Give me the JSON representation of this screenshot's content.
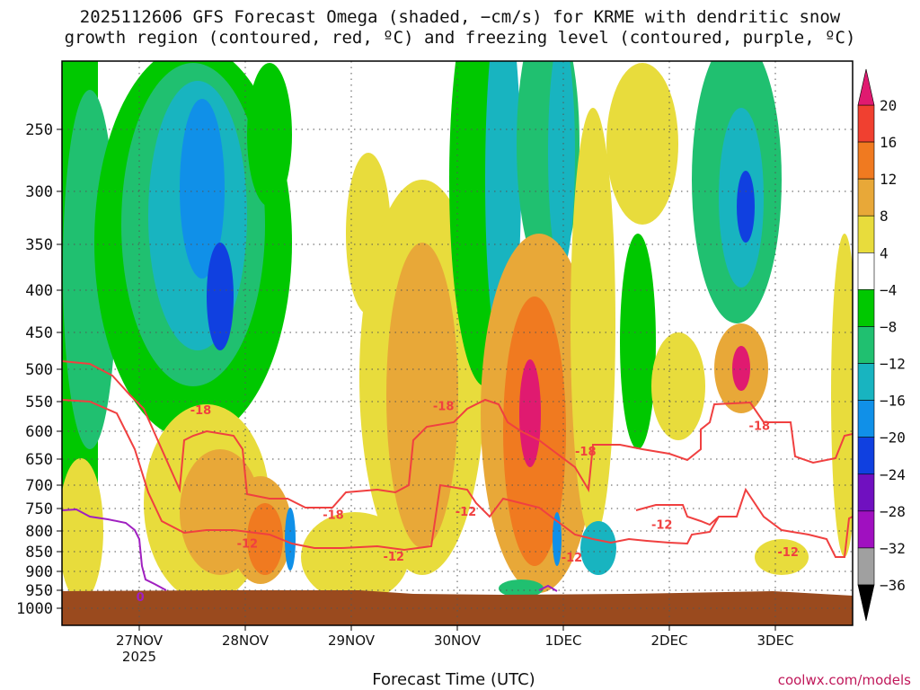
{
  "title": {
    "line1": "2025112606 GFS Forecast Omega (shaded, −cm/s) for KRME with dendritic snow",
    "line2": "growth region (contoured, red, ºC) and freezing level (contoured, purple, ºC)"
  },
  "watermark": "coolwx.com/models",
  "chart_data": {
    "type": "heatmap",
    "xlabel": "Forecast Time (UTC)",
    "ylabel": "",
    "x_start": "2025-11-26 06Z",
    "x_end": "2025-12-03 18Z",
    "x_ticks": [
      "27NOV",
      "28NOV",
      "29NOV",
      "30NOV",
      "1DEC",
      "2DEC",
      "3DEC"
    ],
    "x_year": "2025",
    "y_ticks": [
      250,
      300,
      350,
      400,
      450,
      500,
      550,
      600,
      650,
      700,
      750,
      800,
      850,
      900,
      950,
      1000
    ],
    "ylim": [
      1000,
      200
    ],
    "grid": true,
    "colorbar": {
      "labels": [
        "20",
        "16",
        "12",
        "8",
        "4",
        "−4",
        "−8",
        "−12",
        "−16",
        "−20",
        "−24",
        "−28",
        "−32",
        "−36"
      ],
      "colors": [
        "#f0b020",
        "#e8c840",
        "#e8dc3c",
        "#ffffff",
        "#00c800",
        "#20c060",
        "#10b4a8",
        "#10a0e0",
        "#1060e0",
        "#1010c0",
        "#7010c0",
        "#a010c0",
        "#a0a0a0"
      ],
      "top_color": "#e01a70",
      "bottom_color": "#000000",
      "pos_colors": [
        "#e01a70",
        "#f04030",
        "#f06420",
        "#f0a030"
      ]
    },
    "omega_regions": [
      {
        "d": 1.55,
        "p": 500,
        "v": -10
      },
      {
        "d": 2.45,
        "p": 400,
        "v": -14
      },
      {
        "d": 4.85,
        "p": 350,
        "v": -12
      },
      {
        "d": 6.65,
        "p": 300,
        "v": -14
      },
      {
        "d": 3.85,
        "p": 650,
        "v": 10
      },
      {
        "d": 4.45,
        "p": 800,
        "v": 14
      },
      {
        "d": 2.95,
        "p": 800,
        "v": 12
      },
      {
        "d": 6.65,
        "p": 500,
        "v": 16
      }
    ],
    "contours": [
      {
        "label": "-18",
        "color": "#f04040",
        "kind": "dgz"
      },
      {
        "label": "-12",
        "color": "#f04040",
        "kind": "dgz"
      },
      {
        "label": "0",
        "color": "#a020c0",
        "kind": "freezing"
      }
    ],
    "contour_labels": [
      {
        "text": "-18",
        "d": 0.58,
        "p": 565
      },
      {
        "text": "-12",
        "d": 1.02,
        "p": 832
      },
      {
        "text": "-18",
        "d": 1.83,
        "p": 765
      },
      {
        "text": "-12",
        "d": 2.4,
        "p": 864
      },
      {
        "text": "-18",
        "d": 2.87,
        "p": 558
      },
      {
        "text": "-12",
        "d": 3.08,
        "p": 758
      },
      {
        "text": "-18",
        "d": 4.21,
        "p": 637
      },
      {
        "text": "-12",
        "d": 4.08,
        "p": 866
      },
      {
        "text": "-12",
        "d": 4.93,
        "p": 787
      },
      {
        "text": "-18",
        "d": 5.85,
        "p": 592
      },
      {
        "text": "-12",
        "d": 6.12,
        "p": 852
      },
      {
        "text": "0",
        "d": 0.01,
        "p": 970
      }
    ]
  }
}
